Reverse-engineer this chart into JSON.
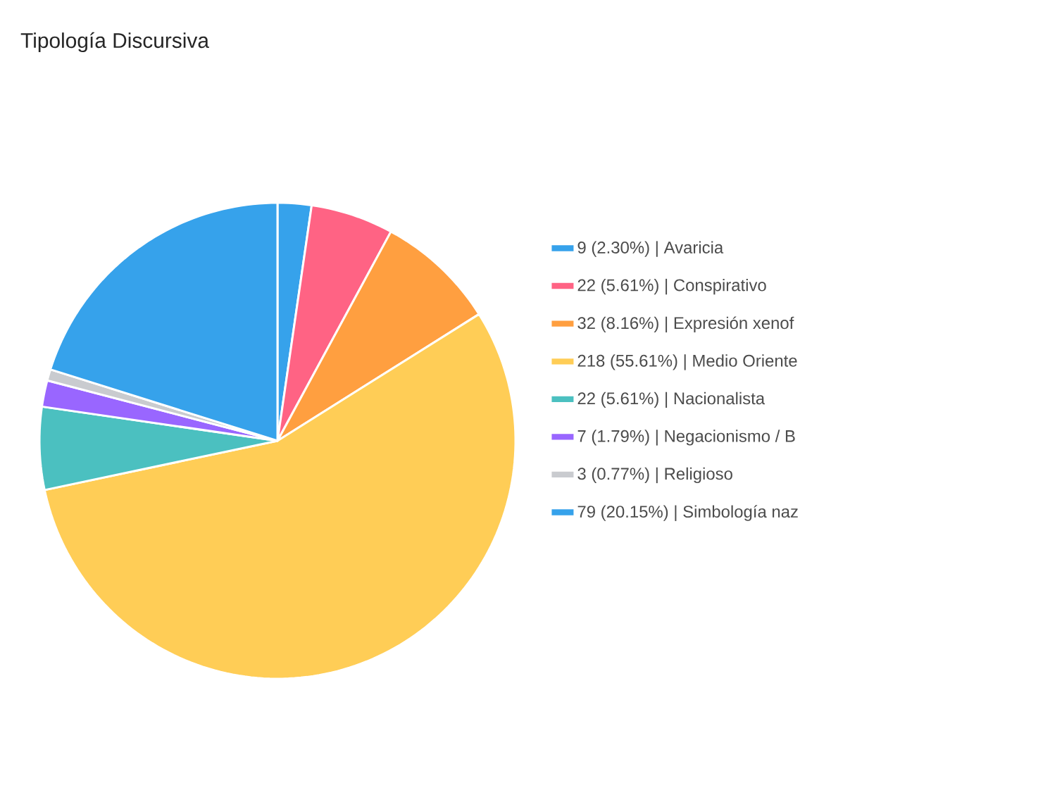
{
  "chart_data": {
    "type": "pie",
    "title": "Tipología Discursiva",
    "categories": [
      "9 (2.30%) | Avaricia",
      "22 (5.61%) | Conspirativo",
      "32 (8.16%) | Expresión xenof",
      "218 (55.61%) | Medio Oriente",
      "22 (5.61%) | Nacionalista",
      "7 (1.79%) | Negacionismo / B",
      "3 (0.77%) | Religioso",
      "79 (20.15%) | Simbología naz"
    ],
    "values": [
      9,
      22,
      32,
      218,
      22,
      7,
      3,
      79
    ],
    "colors": [
      "#36a2eb",
      "#ff6384",
      "#ff9f40",
      "#ffcd56",
      "#4bc0c0",
      "#9966ff",
      "#c9cbcf",
      "#36a2eb"
    ],
    "legend": "right"
  }
}
